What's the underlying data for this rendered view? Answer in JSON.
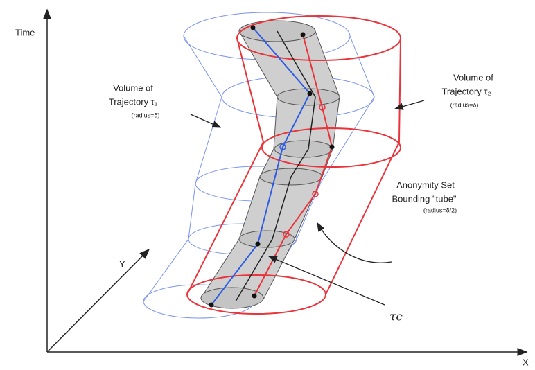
{
  "axes": {
    "time": "Time",
    "x": "X",
    "y": "Y"
  },
  "volume1": {
    "line1": "Volume of",
    "line2": "Trajectory τ₁",
    "note": "(radius=δ)"
  },
  "volume2": {
    "line1": "Volume of",
    "line2": "Trajectory τ₂",
    "note": "(radius=δ)"
  },
  "tube": {
    "line1": "Anonymity Set",
    "line2": "Bounding \"tube\"",
    "note": "(radius=δ/2)"
  },
  "tau_c": "τc"
}
